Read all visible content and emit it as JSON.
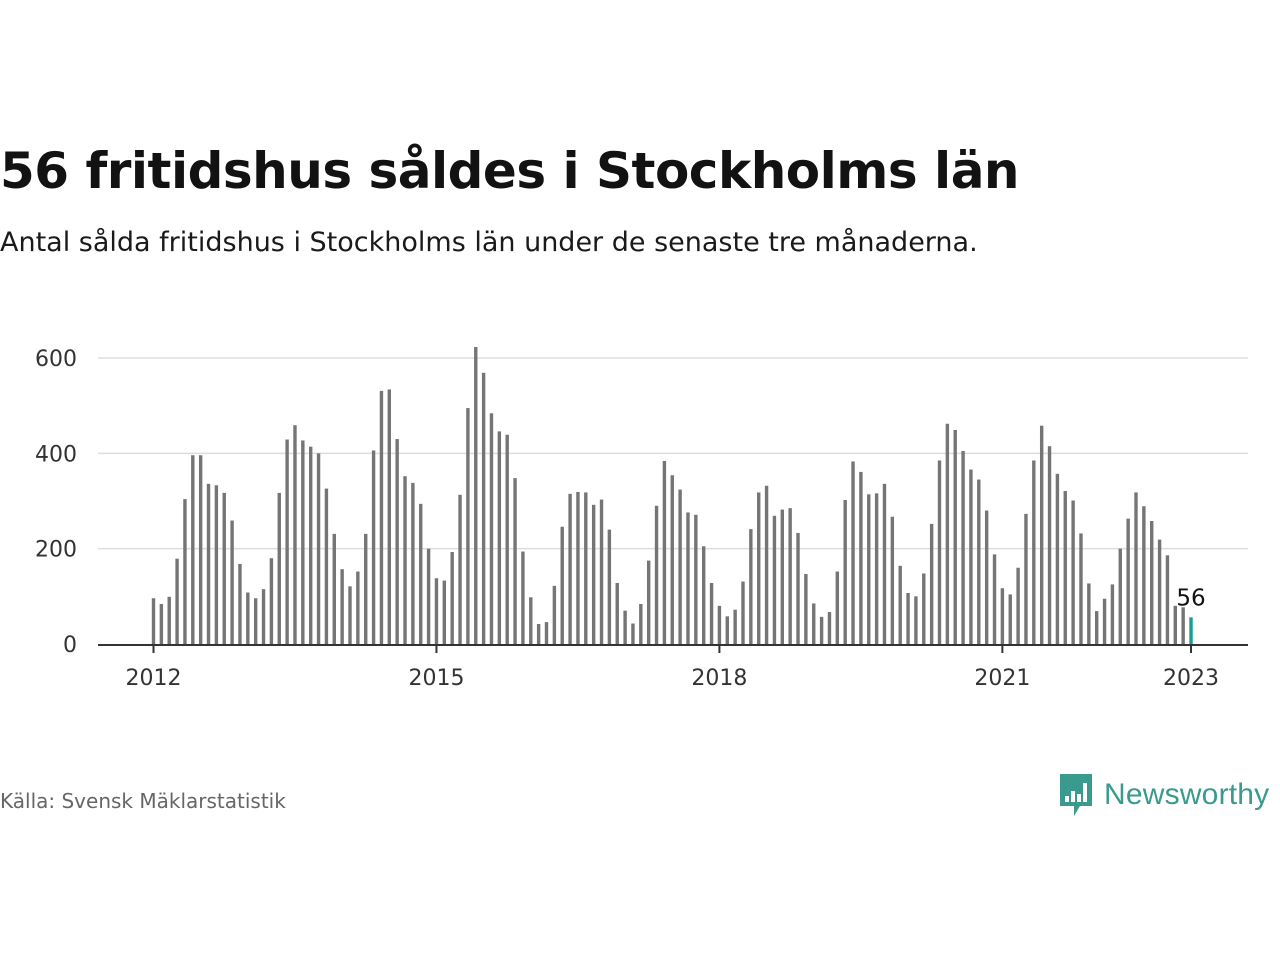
{
  "header": {
    "title": "56 fritidshus såldes i Stockholms län",
    "subtitle": "Antal sålda fritidshus i Stockholms län under de senaste tre månaderna."
  },
  "footer": {
    "source": "Källa: Svensk Mäklarstatistik",
    "brand": "Newsworthy"
  },
  "colors": {
    "bar": "#757575",
    "highlight": "#1a9c95",
    "grid": "#dddddd",
    "axis": "#333333",
    "brand": "#3a9a8d"
  },
  "chart_data": {
    "type": "bar",
    "x_start": "2012-01",
    "interval": "month",
    "y_ticks": [
      0,
      200,
      400,
      600
    ],
    "x_ticks": [
      {
        "label": "2012",
        "month": "2012-01"
      },
      {
        "label": "2015",
        "month": "2015-01"
      },
      {
        "label": "2018",
        "month": "2018-01"
      },
      {
        "label": "2021",
        "month": "2021-01"
      },
      {
        "label": "2023",
        "month": "2023-01"
      }
    ],
    "ylim": [
      0,
      600
    ],
    "grid": true,
    "values": [
      96,
      84,
      99,
      179,
      304,
      396,
      396,
      336,
      333,
      317,
      259,
      168,
      108,
      96,
      115,
      180,
      317,
      429,
      459,
      427,
      414,
      400,
      326,
      231,
      157,
      121,
      152,
      231,
      406,
      531,
      534,
      430,
      352,
      338,
      294,
      200,
      138,
      133,
      193,
      313,
      495,
      623,
      569,
      484,
      446,
      439,
      348,
      194,
      98,
      42,
      46,
      122,
      246,
      315,
      319,
      318,
      292,
      303,
      240,
      128,
      70,
      43,
      84,
      175,
      290,
      384,
      354,
      324,
      276,
      271,
      205,
      128,
      80,
      58,
      72,
      131,
      241,
      318,
      332,
      269,
      282,
      285,
      233,
      147,
      85,
      57,
      67,
      152,
      302,
      383,
      361,
      314,
      316,
      336,
      267,
      164,
      107,
      100,
      148,
      252,
      385,
      462,
      449,
      405,
      366,
      345,
      280,
      188,
      117,
      104,
      160,
      273,
      385,
      458,
      415,
      357,
      321,
      301,
      232,
      127,
      69,
      95,
      125,
      200,
      263,
      318,
      289,
      258,
      219,
      186,
      80,
      77,
      56
    ],
    "highlight_label": "56"
  }
}
